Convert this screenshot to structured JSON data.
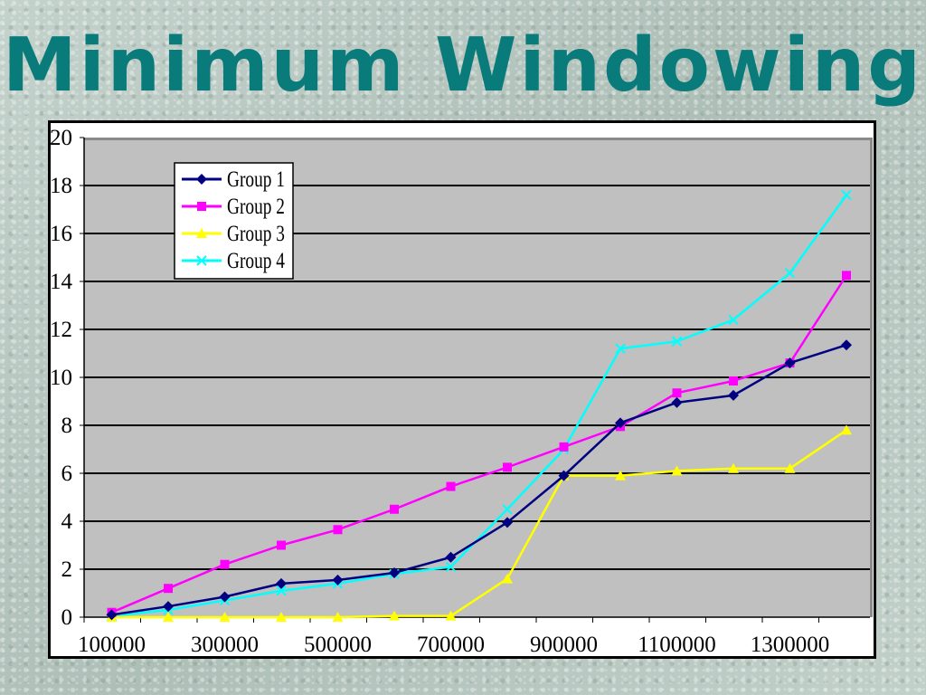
{
  "slide": {
    "title": "Minimum Windowing"
  },
  "chart_data": {
    "type": "line",
    "title": "",
    "xlabel": "",
    "ylabel": "",
    "ylim": [
      0,
      20
    ],
    "yticks": [
      0,
      2,
      4,
      6,
      8,
      10,
      12,
      14,
      16,
      18,
      20
    ],
    "x": [
      100000,
      200000,
      300000,
      400000,
      500000,
      600000,
      700000,
      800000,
      900000,
      1000000,
      1100000,
      1200000,
      1300000,
      1400000
    ],
    "xtick_labels": [
      "100000",
      "300000",
      "500000",
      "700000",
      "900000",
      "1100000",
      "1300000"
    ],
    "grid": "horizontal",
    "plot_background": "#c0c0c0",
    "legend_placement": "top-left",
    "series": [
      {
        "name": "Group 1",
        "color": "#000080",
        "marker": "diamond",
        "values": [
          0.1,
          0.45,
          0.85,
          1.4,
          1.55,
          1.85,
          2.5,
          3.95,
          5.9,
          8.1,
          8.95,
          9.25,
          10.6,
          11.35
        ]
      },
      {
        "name": "Group 2",
        "color": "#ff00ff",
        "marker": "square",
        "values": [
          0.2,
          1.2,
          2.2,
          3.0,
          3.65,
          4.5,
          5.45,
          6.25,
          7.1,
          7.95,
          9.35,
          9.85,
          10.6,
          14.25
        ]
      },
      {
        "name": "Group 3",
        "color": "#ffff00",
        "marker": "triangle",
        "values": [
          0.0,
          0.0,
          0.0,
          0.0,
          0.0,
          0.05,
          0.05,
          1.6,
          5.9,
          5.9,
          6.1,
          6.2,
          6.2,
          7.8
        ]
      },
      {
        "name": "Group 4",
        "color": "#00ffff",
        "marker": "x",
        "values": [
          0.05,
          0.3,
          0.7,
          1.1,
          1.4,
          1.8,
          2.1,
          4.5,
          7.0,
          11.2,
          11.5,
          12.4,
          14.35,
          17.6
        ]
      }
    ]
  }
}
